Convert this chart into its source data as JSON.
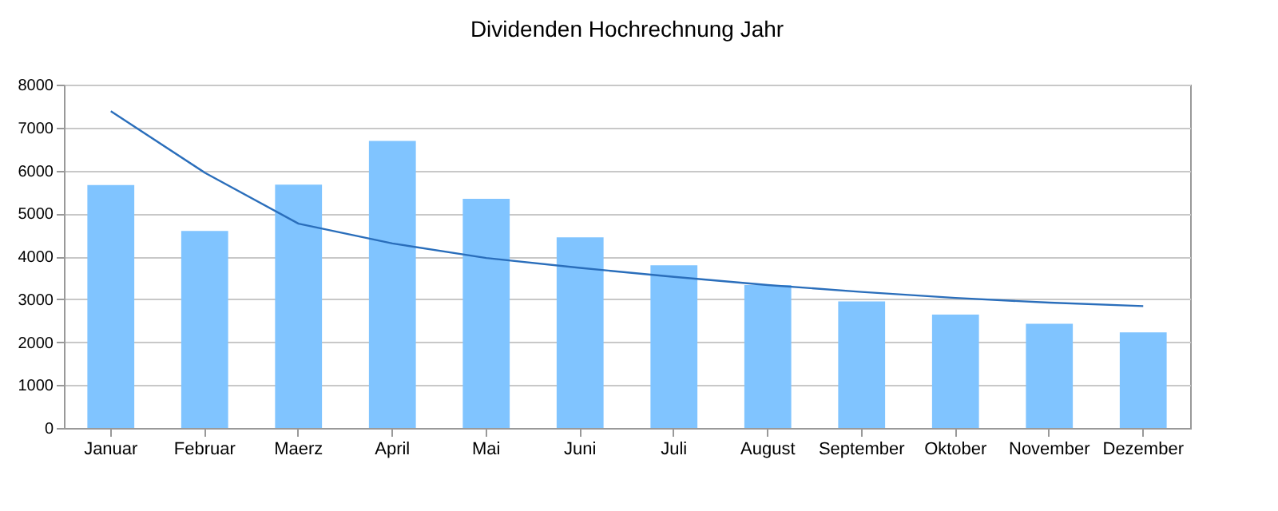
{
  "chart_data": {
    "type": "bar",
    "title": "Dividenden Hochrechnung Jahr",
    "categories": [
      "Januar",
      "Februar",
      "Maerz",
      "April",
      "Mai",
      "Juni",
      "Juli",
      "August",
      "September",
      "Oktober",
      "November",
      "Dezember"
    ],
    "series": [
      {
        "color": "#80c4ff",
        "values": [
          5660,
          4590,
          5670,
          6690,
          5340,
          4440,
          3790,
          3330,
          2950,
          2640,
          2430,
          2230
        ]
      },
      {
        "type": "line",
        "color": "#2a6ebb",
        "x": [
          "Januar",
          "Februar",
          "Maerz",
          "April",
          "Mai",
          "Juni",
          "Juli",
          "August",
          "September",
          "Oktober",
          "November",
          "Dezember"
        ],
        "values": [
          7380,
          5950,
          4760,
          4300,
          3960,
          3730,
          3520,
          3330,
          3170,
          3030,
          2920,
          2840
        ]
      }
    ],
    "ylim": [
      0,
      8000
    ],
    "yticks": [
      0,
      1000,
      2000,
      3000,
      4000,
      5000,
      6000,
      7000,
      8000
    ],
    "grid": "y",
    "marker": "none",
    "line_style": "solid"
  }
}
